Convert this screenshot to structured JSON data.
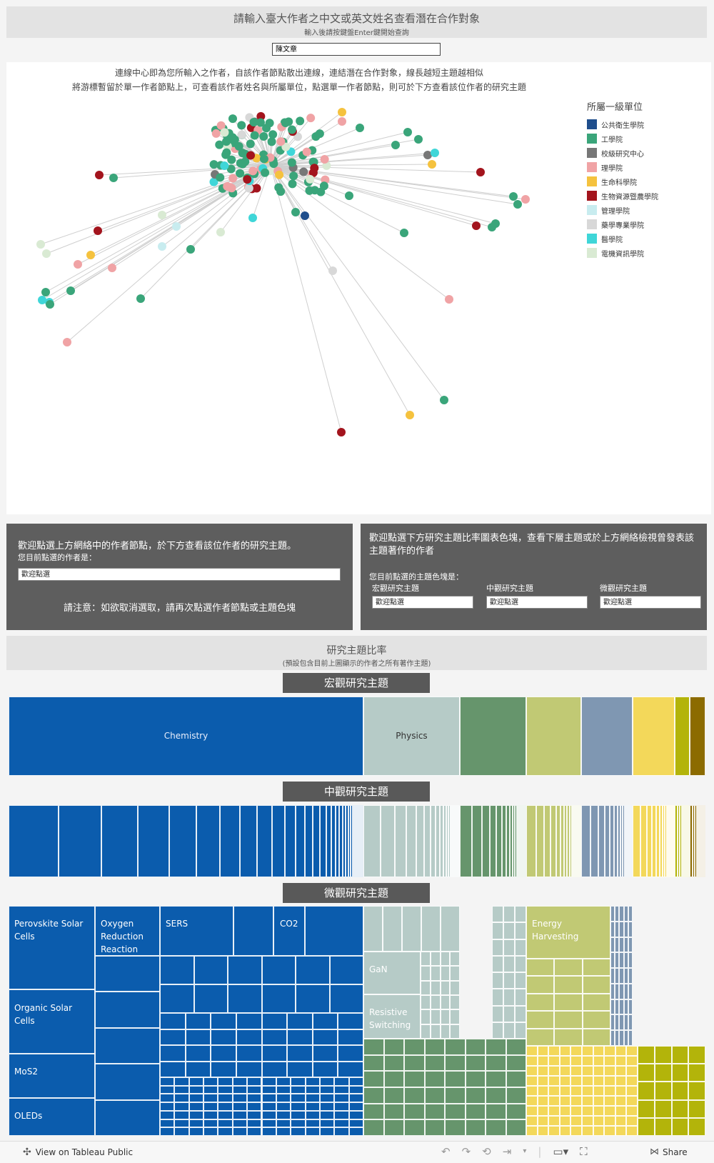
{
  "header": {
    "title": "請輸入臺大作者之中文或英文姓名查看潛在合作對象",
    "subtitle": "輸入後請按鍵盤Enter鍵開始查詢"
  },
  "author_input": {
    "value": "陳文章"
  },
  "network": {
    "desc_line1": "連線中心即為您所輸入之作者，自該作者節點散出連線，連結潛在合作對象，線長越短主題越相似",
    "desc_line2": "將游標暫留於單一作者節點上，可查看該作者姓名與所屬單位，點選單一作者節點，則可於下方查看該位作者的研究主題",
    "legend_title": "所屬一級單位",
    "legend": [
      {
        "label": "公共衛生學院",
        "color": "#1f4e8c"
      },
      {
        "label": "工學院",
        "color": "#3aa57a"
      },
      {
        "label": "校級研究中心",
        "color": "#777777"
      },
      {
        "label": "理學院",
        "color": "#f0a3a5"
      },
      {
        "label": "生命科學院",
        "color": "#f5c23e"
      },
      {
        "label": "生物資源暨農學院",
        "color": "#a3141d"
      },
      {
        "label": "管理學院",
        "color": "#c8ecef"
      },
      {
        "label": "藥學專業學院",
        "color": "#d8d8d8"
      },
      {
        "label": "醫學院",
        "color": "#3fd6d8"
      },
      {
        "label": "電機資訊學院",
        "color": "#d9ead3"
      }
    ]
  },
  "left_panel": {
    "title": "歡迎點選上方網絡中的作者節點，於下方查看該位作者的研究主題。",
    "subtitle": "您目前點選的作者是：",
    "selected": "歡迎點選",
    "note": "請注意：如欲取消選取，請再次點選作者節點或主題色塊"
  },
  "right_panel": {
    "title": "歡迎點選下方研究主題比率圖表色塊，查看下層主題或於上方網絡檢視曾發表該主題著作的作者",
    "subtitle": "您目前點選的主題色塊是：",
    "fields": [
      {
        "label": "宏觀研究主題",
        "value": "歡迎點選"
      },
      {
        "label": "中觀研究主題",
        "value": "歡迎點選"
      },
      {
        "label": "微觀研究主題",
        "value": "歡迎點選"
      }
    ]
  },
  "topics": {
    "title": "研究主題比率",
    "subtitle": "(預設包含目前上圖顯示的作者之所有著作主題)",
    "macro_label": "宏觀研究主題",
    "meso_label": "中觀研究主題",
    "micro_label": "微觀研究主題",
    "macro": [
      {
        "label": "Chemistry",
        "share": 0.509,
        "color": "#0b5cad"
      },
      {
        "label": "Physics",
        "share": 0.138,
        "color": "#b6cbc7"
      },
      {
        "label": "",
        "share": 0.095,
        "color": "#66956c"
      },
      {
        "label": "",
        "share": 0.079,
        "color": "#c1c974"
      },
      {
        "label": "",
        "share": 0.074,
        "color": "#7f97b2"
      },
      {
        "label": "",
        "share": 0.06,
        "color": "#f3d85a"
      },
      {
        "label": "",
        "share": 0.022,
        "color": "#b3b40a"
      },
      {
        "label": "",
        "share": 0.005,
        "color": "#8c6b00"
      }
    ],
    "micro_labels": {
      "perovskite": "Perovskite Solar Cells",
      "oxygen": "Oxygen Reduction Reaction",
      "sers": "SERS",
      "co2": "CO2",
      "organic": "Organic Solar Cells",
      "mos2": "MoS2",
      "oleds": "OLEDs",
      "gan": "GaN",
      "resistive": "Resistive Switching",
      "energy": "Energy Harvesting"
    }
  },
  "footer": {
    "view_label": "View on Tableau Public",
    "share_label": "Share"
  }
}
